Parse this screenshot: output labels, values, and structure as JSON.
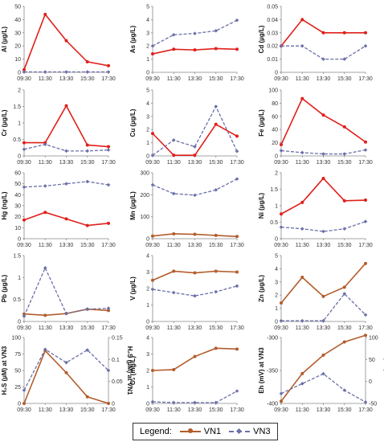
{
  "colors": {
    "vn1": "#b35d2c",
    "vn1_red": "#e0201b",
    "vn3": "#6b6fa8"
  },
  "legend": {
    "title": "Legend:",
    "vn1": "VN1",
    "vn3": "VN3"
  },
  "chart_data": [
    {
      "type": "line",
      "ylabel": "Al (µg/L)",
      "x": [
        "09:30",
        "11:30",
        "13:30",
        "15:30",
        "17:30"
      ],
      "ylim": [
        0,
        50
      ],
      "yticks": [
        0,
        10,
        20,
        30,
        40,
        50
      ],
      "vn1_style": "red",
      "series": [
        {
          "name": "VN1",
          "values": [
            2,
            44,
            24,
            8,
            5
          ]
        },
        {
          "name": "VN3",
          "values": [
            0.3,
            0.3,
            0.3,
            0.3,
            0.3
          ]
        }
      ]
    },
    {
      "type": "line",
      "ylabel": "As (µg/L)",
      "x": [
        "09:30",
        "11:30",
        "13:30",
        "15:30",
        "17:30"
      ],
      "ylim": [
        0,
        5
      ],
      "yticks": [
        0,
        1,
        2,
        3,
        4,
        5
      ],
      "vn1_style": "red",
      "series": [
        {
          "name": "VN1",
          "values": [
            1.4,
            1.75,
            1.7,
            1.8,
            1.75
          ]
        },
        {
          "name": "VN3",
          "values": [
            2.0,
            2.85,
            2.95,
            3.15,
            3.95
          ]
        }
      ]
    },
    {
      "type": "line",
      "ylabel": "Cd (µg/L)",
      "x": [
        "09:30",
        "11:30",
        "13:30",
        "15:30",
        "17:30"
      ],
      "ylim": [
        0,
        0.05
      ],
      "yticks": [
        "0",
        "0.01",
        "0.02",
        "0.03",
        "0.04",
        "0.05"
      ],
      "vn1_style": "red",
      "series": [
        {
          "name": "VN1",
          "values": [
            0.02,
            0.04,
            0.03,
            0.03,
            0.03
          ]
        },
        {
          "name": "VN3",
          "values": [
            0.02,
            0.02,
            0.01,
            0.01,
            0.02
          ]
        }
      ]
    },
    {
      "type": "line",
      "ylabel": "Cr (µg/L)",
      "x": [
        "09:30",
        "11:30",
        "13:30",
        "15:30",
        "17:30"
      ],
      "ylim": [
        0,
        2
      ],
      "yticks": [
        "0",
        "0.5",
        "1",
        "1.5",
        "2"
      ],
      "vn1_style": "red",
      "series": [
        {
          "name": "VN1",
          "values": [
            0.4,
            0.4,
            1.52,
            0.33,
            0.28
          ]
        },
        {
          "name": "VN3",
          "values": [
            0.2,
            0.35,
            0.15,
            0.15,
            0.18
          ]
        }
      ]
    },
    {
      "type": "line",
      "ylabel": "Cu (µg/L)",
      "x": [
        "09:30",
        "11:30",
        "13:30",
        "15:30",
        "17:30"
      ],
      "ylim": [
        0,
        5
      ],
      "yticks": [
        0,
        1,
        2,
        3,
        4,
        5
      ],
      "vn1_style": "red",
      "series": [
        {
          "name": "VN1",
          "values": [
            1.7,
            0.05,
            0.05,
            2.4,
            1.5
          ]
        },
        {
          "name": "VN3",
          "values": [
            0.05,
            1.2,
            0.7,
            3.75,
            0.35
          ]
        }
      ]
    },
    {
      "type": "line",
      "ylabel": "Fe (µg/L)",
      "x": [
        "09:30",
        "11:30",
        "13:30",
        "15:30",
        "17:30"
      ],
      "ylim": [
        0,
        100
      ],
      "yticks": [
        0,
        20,
        40,
        60,
        80,
        100
      ],
      "vn1_style": "red",
      "series": [
        {
          "name": "VN1",
          "values": [
            17,
            87,
            62,
            44,
            21
          ]
        },
        {
          "name": "VN3",
          "values": [
            8,
            5,
            3,
            3,
            9
          ]
        }
      ]
    },
    {
      "type": "line",
      "ylabel": "Hg (ng/L)",
      "x": [
        "09:30",
        "11:30",
        "13:30",
        "15:30",
        "17:30"
      ],
      "ylim": [
        0,
        60
      ],
      "yticks": [
        0,
        10,
        20,
        30,
        40,
        50,
        60
      ],
      "vn1_style": "red",
      "series": [
        {
          "name": "VN1",
          "values": [
            17,
            24,
            18,
            12,
            14
          ]
        },
        {
          "name": "VN3",
          "values": [
            47,
            48,
            50,
            52,
            49
          ]
        }
      ]
    },
    {
      "type": "line",
      "ylabel": "Mn (µg/L)",
      "x": [
        "09:30",
        "11:30",
        "13:30",
        "15:30",
        "17:30"
      ],
      "ylim": [
        0,
        300
      ],
      "yticks": [
        0,
        100,
        200,
        300
      ],
      "vn1_style": "brown",
      "series": [
        {
          "name": "VN1",
          "values": [
            12,
            22,
            20,
            15,
            10
          ]
        },
        {
          "name": "VN3",
          "values": [
            245,
            205,
            198,
            222,
            272
          ]
        }
      ]
    },
    {
      "type": "line",
      "ylabel": "Ni (µg/L)",
      "x": [
        "09:30",
        "11:30",
        "13:30",
        "15:30",
        "17:30"
      ],
      "ylim": [
        0,
        2
      ],
      "yticks": [
        "0",
        "0.5",
        "1",
        "1.5",
        "2"
      ],
      "vn1_style": "red",
      "series": [
        {
          "name": "VN1",
          "values": [
            0.75,
            1.1,
            1.83,
            1.15,
            1.17
          ]
        },
        {
          "name": "VN3",
          "values": [
            0.35,
            0.3,
            0.22,
            0.3,
            0.52
          ]
        }
      ]
    },
    {
      "type": "line",
      "ylabel": "Pb (µg/L)",
      "x": [
        "09:30",
        "11:30",
        "13:30",
        "15:30",
        "17:30"
      ],
      "ylim": [
        0,
        1.5
      ],
      "yticks": [
        "0",
        "0.5",
        "1",
        "1.5"
      ],
      "vn1_style": "brown",
      "series": [
        {
          "name": "VN1",
          "values": [
            0.17,
            0.14,
            0.18,
            0.28,
            0.25
          ]
        },
        {
          "name": "VN3",
          "values": [
            0.12,
            1.22,
            0.18,
            0.28,
            0.3
          ]
        }
      ]
    },
    {
      "type": "line",
      "ylabel": "V (µg/L)",
      "x": [
        "09:30",
        "11:30",
        "13:30",
        "15:30",
        "17:30"
      ],
      "ylim": [
        0,
        4
      ],
      "yticks": [
        0,
        1,
        2,
        3,
        4
      ],
      "vn1_style": "brown",
      "series": [
        {
          "name": "VN1",
          "values": [
            2.5,
            3.05,
            2.95,
            3.05,
            3.0
          ]
        },
        {
          "name": "VN3",
          "values": [
            1.95,
            1.75,
            1.55,
            1.8,
            2.15
          ]
        }
      ]
    },
    {
      "type": "line",
      "ylabel": "Zn (µg/L)",
      "x": [
        "09:30",
        "11:30",
        "13:30",
        "15:30",
        "17:30"
      ],
      "ylim": [
        0,
        5
      ],
      "yticks": [
        0,
        1,
        2,
        3,
        4,
        5
      ],
      "vn1_style": "brown",
      "series": [
        {
          "name": "VN1",
          "values": [
            1.4,
            3.35,
            1.9,
            2.6,
            4.4
          ]
        },
        {
          "name": "VN3",
          "values": [
            0.05,
            0.05,
            0.05,
            2.1,
            0.5
          ]
        }
      ]
    },
    {
      "type": "line",
      "ylabel": "H₂S (µM) at VN3",
      "y2label": "H₂S (µM) at VN1",
      "x": [
        "09:30",
        "11:30",
        "13:30",
        "15:30",
        "17:30"
      ],
      "ylim": [
        0,
        100
      ],
      "yticks": [
        0,
        25,
        50,
        75,
        100
      ],
      "y2lim": [
        0,
        0.15
      ],
      "y2ticks": [
        "0",
        "0.05",
        "0.1",
        "0.15"
      ],
      "vn1_style": "brown",
      "vn1_axis": "right",
      "series": [
        {
          "name": "VN1",
          "values": [
            0,
            0.12,
            0.07,
            0.015,
            0
          ]
        },
        {
          "name": "VN3",
          "values": [
            20,
            82,
            62,
            81,
            50
          ]
        }
      ]
    },
    {
      "type": "line",
      "ylabel": "O₂ (mg/L)",
      "x": [
        "09:30",
        "11:30",
        "13:30",
        "15:30",
        "17:30"
      ],
      "ylim": [
        0,
        4
      ],
      "yticks": [
        0,
        1,
        2,
        3,
        4
      ],
      "vn1_style": "brown",
      "series": [
        {
          "name": "VN1",
          "values": [
            2.0,
            2.05,
            2.85,
            3.35,
            3.3
          ]
        },
        {
          "name": "VN3",
          "values": [
            0.1,
            0.05,
            0.05,
            0.05,
            0.75
          ]
        }
      ]
    },
    {
      "type": "line",
      "ylabel": "Eh (mV) at VN3",
      "y2label": "Eh (mV) at VN1",
      "x": [
        "09:30",
        "11:30",
        "13:30",
        "15:30",
        "17:30"
      ],
      "ylim": [
        -400,
        -300
      ],
      "yticks": [
        -400,
        -350,
        -300
      ],
      "y2lim": [
        -50,
        100
      ],
      "y2ticks": [
        -50,
        0,
        50,
        100
      ],
      "vn1_style": "brown",
      "vn1_axis": "right",
      "series": [
        {
          "name": "VN1",
          "values": [
            -45,
            18,
            60,
            90,
            105
          ]
        },
        {
          "name": "VN3",
          "values": [
            -385,
            -370,
            -355,
            -380,
            -398
          ]
        }
      ]
    }
  ]
}
